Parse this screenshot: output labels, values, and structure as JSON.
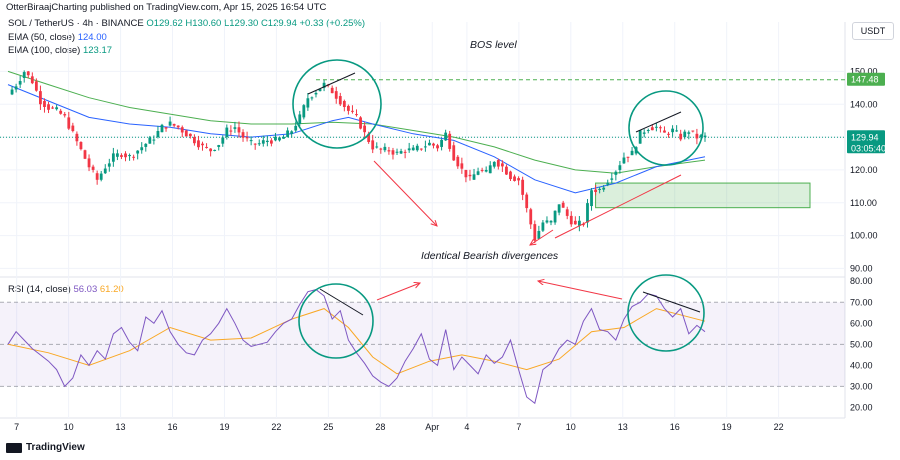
{
  "header": {
    "publisher": "OtterBiraajCharting published on TradingView.com, Apr 15, 2025 16:54 UTC",
    "symbol": "SOL / TetherUS · 4h · BINANCE",
    "ohlc": "O129.62 H130.60 L129.30 C129.94 +0.33 (+0.25%)",
    "ema50_label": "EMA (50, close)",
    "ema50_value": "124.00",
    "ema100_label": "EMA (100, close)",
    "ema100_value": "123.17",
    "rsi_label": "RSI (14, close)",
    "rsi_value": "56.03",
    "rsi_ma_value": "61.20"
  },
  "currency": "USDT",
  "brand": "TradingView",
  "colors": {
    "up": "#089981",
    "down": "#f23645",
    "ema50": "#2962ff",
    "ema100": "#4caf50",
    "rsi": "#7e57c2",
    "rsi_ma": "#f9a825",
    "annotation_circle": "#089981",
    "arrow": "#f23645"
  },
  "annotations": {
    "bos": "BOS level",
    "divergence": "Identical Bearish divergences"
  },
  "price_labels": {
    "bos_level": "147.48",
    "current_price": "129.94",
    "countdown": "03:05:40"
  },
  "chart_data": [
    {
      "type": "candlestick",
      "title": "SOL / TetherUS · 4h · BINANCE",
      "price_ticks": [
        "150.00",
        "140.00",
        "130.00",
        "120.00",
        "110.00",
        "100.00",
        "90.00"
      ],
      "date_ticks": [
        "7",
        "10",
        "13",
        "16",
        "19",
        "22",
        "25",
        "28",
        "Apr",
        "4",
        "7",
        "10",
        "13",
        "16",
        "19",
        "22"
      ],
      "ylim": [
        88,
        155
      ],
      "bos_level": 147.48,
      "demand_zone": [
        108.5,
        116
      ],
      "ohlc_close_path": [
        [
          0,
          143
        ],
        [
          2,
          146
        ],
        [
          4,
          150
        ],
        [
          6,
          147
        ],
        [
          8,
          141
        ],
        [
          10,
          139
        ],
        [
          12,
          138
        ],
        [
          14,
          136
        ],
        [
          16,
          131
        ],
        [
          18,
          126
        ],
        [
          20,
          121
        ],
        [
          22,
          117
        ],
        [
          24,
          121
        ],
        [
          26,
          124
        ],
        [
          28,
          125
        ],
        [
          30,
          124
        ],
        [
          32,
          126
        ],
        [
          34,
          128
        ],
        [
          36,
          130
        ],
        [
          38,
          133
        ],
        [
          40,
          134
        ],
        [
          42,
          133
        ],
        [
          44,
          131
        ],
        [
          46,
          129
        ],
        [
          48,
          127
        ],
        [
          50,
          126
        ],
        [
          52,
          128
        ],
        [
          54,
          132
        ],
        [
          56,
          133
        ],
        [
          58,
          130
        ],
        [
          60,
          128
        ],
        [
          62,
          128
        ],
        [
          64,
          129
        ],
        [
          66,
          129
        ],
        [
          68,
          130
        ],
        [
          70,
          132
        ],
        [
          72,
          136
        ],
        [
          74,
          142
        ],
        [
          76,
          144
        ],
        [
          78,
          146
        ],
        [
          80,
          144
        ],
        [
          82,
          141
        ],
        [
          84,
          138
        ],
        [
          86,
          136
        ],
        [
          88,
          131
        ],
        [
          90,
          127
        ],
        [
          92,
          126
        ],
        [
          94,
          126
        ],
        [
          96,
          125
        ],
        [
          98,
          126
        ],
        [
          100,
          126
        ],
        [
          102,
          127
        ],
        [
          104,
          128
        ],
        [
          106,
          127
        ],
        [
          108,
          131
        ],
        [
          110,
          124
        ],
        [
          112,
          120
        ],
        [
          114,
          117
        ],
        [
          116,
          120
        ],
        [
          118,
          119
        ],
        [
          120,
          123
        ],
        [
          122,
          121
        ],
        [
          124,
          118
        ],
        [
          126,
          117
        ],
        [
          128,
          108
        ],
        [
          130,
          99
        ],
        [
          132,
          104
        ],
        [
          134,
          104
        ],
        [
          136,
          110
        ],
        [
          138,
          106
        ],
        [
          140,
          103
        ],
        [
          142,
          104
        ],
        [
          144,
          114
        ],
        [
          146,
          114
        ],
        [
          148,
          117
        ],
        [
          150,
          120
        ],
        [
          152,
          124
        ],
        [
          154,
          125
        ],
        [
          156,
          131
        ],
        [
          158,
          133
        ],
        [
          160,
          133
        ],
        [
          162,
          131
        ],
        [
          164,
          132
        ],
        [
          166,
          130
        ],
        [
          168,
          132
        ],
        [
          170,
          130
        ],
        [
          172,
          130
        ]
      ],
      "ema50_path": [
        [
          0,
          146
        ],
        [
          10,
          141
        ],
        [
          20,
          136
        ],
        [
          30,
          134
        ],
        [
          40,
          133
        ],
        [
          50,
          131
        ],
        [
          60,
          130
        ],
        [
          70,
          131
        ],
        [
          80,
          135
        ],
        [
          84,
          136
        ],
        [
          90,
          134
        ],
        [
          100,
          131
        ],
        [
          110,
          129
        ],
        [
          120,
          124
        ],
        [
          130,
          117
        ],
        [
          140,
          113
        ],
        [
          150,
          116
        ],
        [
          160,
          121
        ],
        [
          172,
          124
        ]
      ],
      "ema100_path": [
        [
          0,
          150
        ],
        [
          10,
          146
        ],
        [
          20,
          142
        ],
        [
          30,
          139
        ],
        [
          40,
          137
        ],
        [
          50,
          135
        ],
        [
          60,
          134
        ],
        [
          70,
          134
        ],
        [
          80,
          134.5
        ],
        [
          90,
          134
        ],
        [
          100,
          132
        ],
        [
          110,
          130
        ],
        [
          120,
          127
        ],
        [
          130,
          123
        ],
        [
          140,
          120
        ],
        [
          150,
          119
        ],
        [
          160,
          121
        ],
        [
          172,
          123
        ]
      ]
    },
    {
      "type": "line",
      "title": "RSI (14, close)",
      "ylim": [
        15,
        82
      ],
      "rsi_ticks": [
        "80.00",
        "70.00",
        "60.00",
        "50.00",
        "40.00",
        "30.00",
        "20.00"
      ],
      "overbought": 70,
      "oversold": 30,
      "rsi_path": [
        [
          0,
          50
        ],
        [
          2,
          56
        ],
        [
          4,
          52
        ],
        [
          6,
          48
        ],
        [
          8,
          45
        ],
        [
          10,
          42
        ],
        [
          12,
          38
        ],
        [
          14,
          30
        ],
        [
          16,
          34
        ],
        [
          18,
          45
        ],
        [
          20,
          40
        ],
        [
          22,
          47
        ],
        [
          24,
          43
        ],
        [
          26,
          55
        ],
        [
          28,
          58
        ],
        [
          30,
          51
        ],
        [
          32,
          47
        ],
        [
          34,
          63
        ],
        [
          36,
          60
        ],
        [
          38,
          66
        ],
        [
          40,
          56
        ],
        [
          42,
          50
        ],
        [
          44,
          46
        ],
        [
          46,
          45
        ],
        [
          48,
          52
        ],
        [
          50,
          55
        ],
        [
          52,
          60
        ],
        [
          54,
          67
        ],
        [
          56,
          60
        ],
        [
          58,
          52
        ],
        [
          60,
          49
        ],
        [
          62,
          50
        ],
        [
          64,
          51
        ],
        [
          66,
          56
        ],
        [
          68,
          60
        ],
        [
          70,
          62
        ],
        [
          72,
          69
        ],
        [
          74,
          75
        ],
        [
          76,
          76
        ],
        [
          78,
          73
        ],
        [
          80,
          62
        ],
        [
          82,
          66
        ],
        [
          84,
          52
        ],
        [
          86,
          46
        ],
        [
          88,
          41
        ],
        [
          90,
          35
        ],
        [
          92,
          32
        ],
        [
          94,
          30
        ],
        [
          96,
          34
        ],
        [
          98,
          42
        ],
        [
          100,
          48
        ],
        [
          102,
          55
        ],
        [
          104,
          43
        ],
        [
          106,
          40
        ],
        [
          108,
          57
        ],
        [
          110,
          38
        ],
        [
          112,
          44
        ],
        [
          114,
          40
        ],
        [
          116,
          36
        ],
        [
          118,
          45
        ],
        [
          120,
          41
        ],
        [
          122,
          44
        ],
        [
          124,
          52
        ],
        [
          126,
          38
        ],
        [
          128,
          25
        ],
        [
          130,
          22
        ],
        [
          132,
          38
        ],
        [
          134,
          41
        ],
        [
          136,
          48
        ],
        [
          138,
          52
        ],
        [
          140,
          50
        ],
        [
          142,
          61
        ],
        [
          144,
          67
        ],
        [
          146,
          57
        ],
        [
          148,
          56
        ],
        [
          150,
          52
        ],
        [
          152,
          62
        ],
        [
          154,
          68
        ],
        [
          156,
          70
        ],
        [
          158,
          74
        ],
        [
          160,
          73
        ],
        [
          162,
          67
        ],
        [
          164,
          63
        ],
        [
          166,
          67
        ],
        [
          168,
          55
        ],
        [
          170,
          59
        ],
        [
          172,
          56
        ]
      ],
      "rsi_ma_path": [
        [
          0,
          50
        ],
        [
          10,
          46
        ],
        [
          20,
          40
        ],
        [
          30,
          47
        ],
        [
          40,
          58
        ],
        [
          50,
          52
        ],
        [
          60,
          53
        ],
        [
          70,
          62
        ],
        [
          78,
          67
        ],
        [
          84,
          58
        ],
        [
          90,
          44
        ],
        [
          96,
          36
        ],
        [
          104,
          42
        ],
        [
          112,
          45
        ],
        [
          120,
          42
        ],
        [
          128,
          38
        ],
        [
          136,
          43
        ],
        [
          144,
          56
        ],
        [
          152,
          58
        ],
        [
          160,
          67
        ],
        [
          172,
          61
        ]
      ]
    }
  ]
}
